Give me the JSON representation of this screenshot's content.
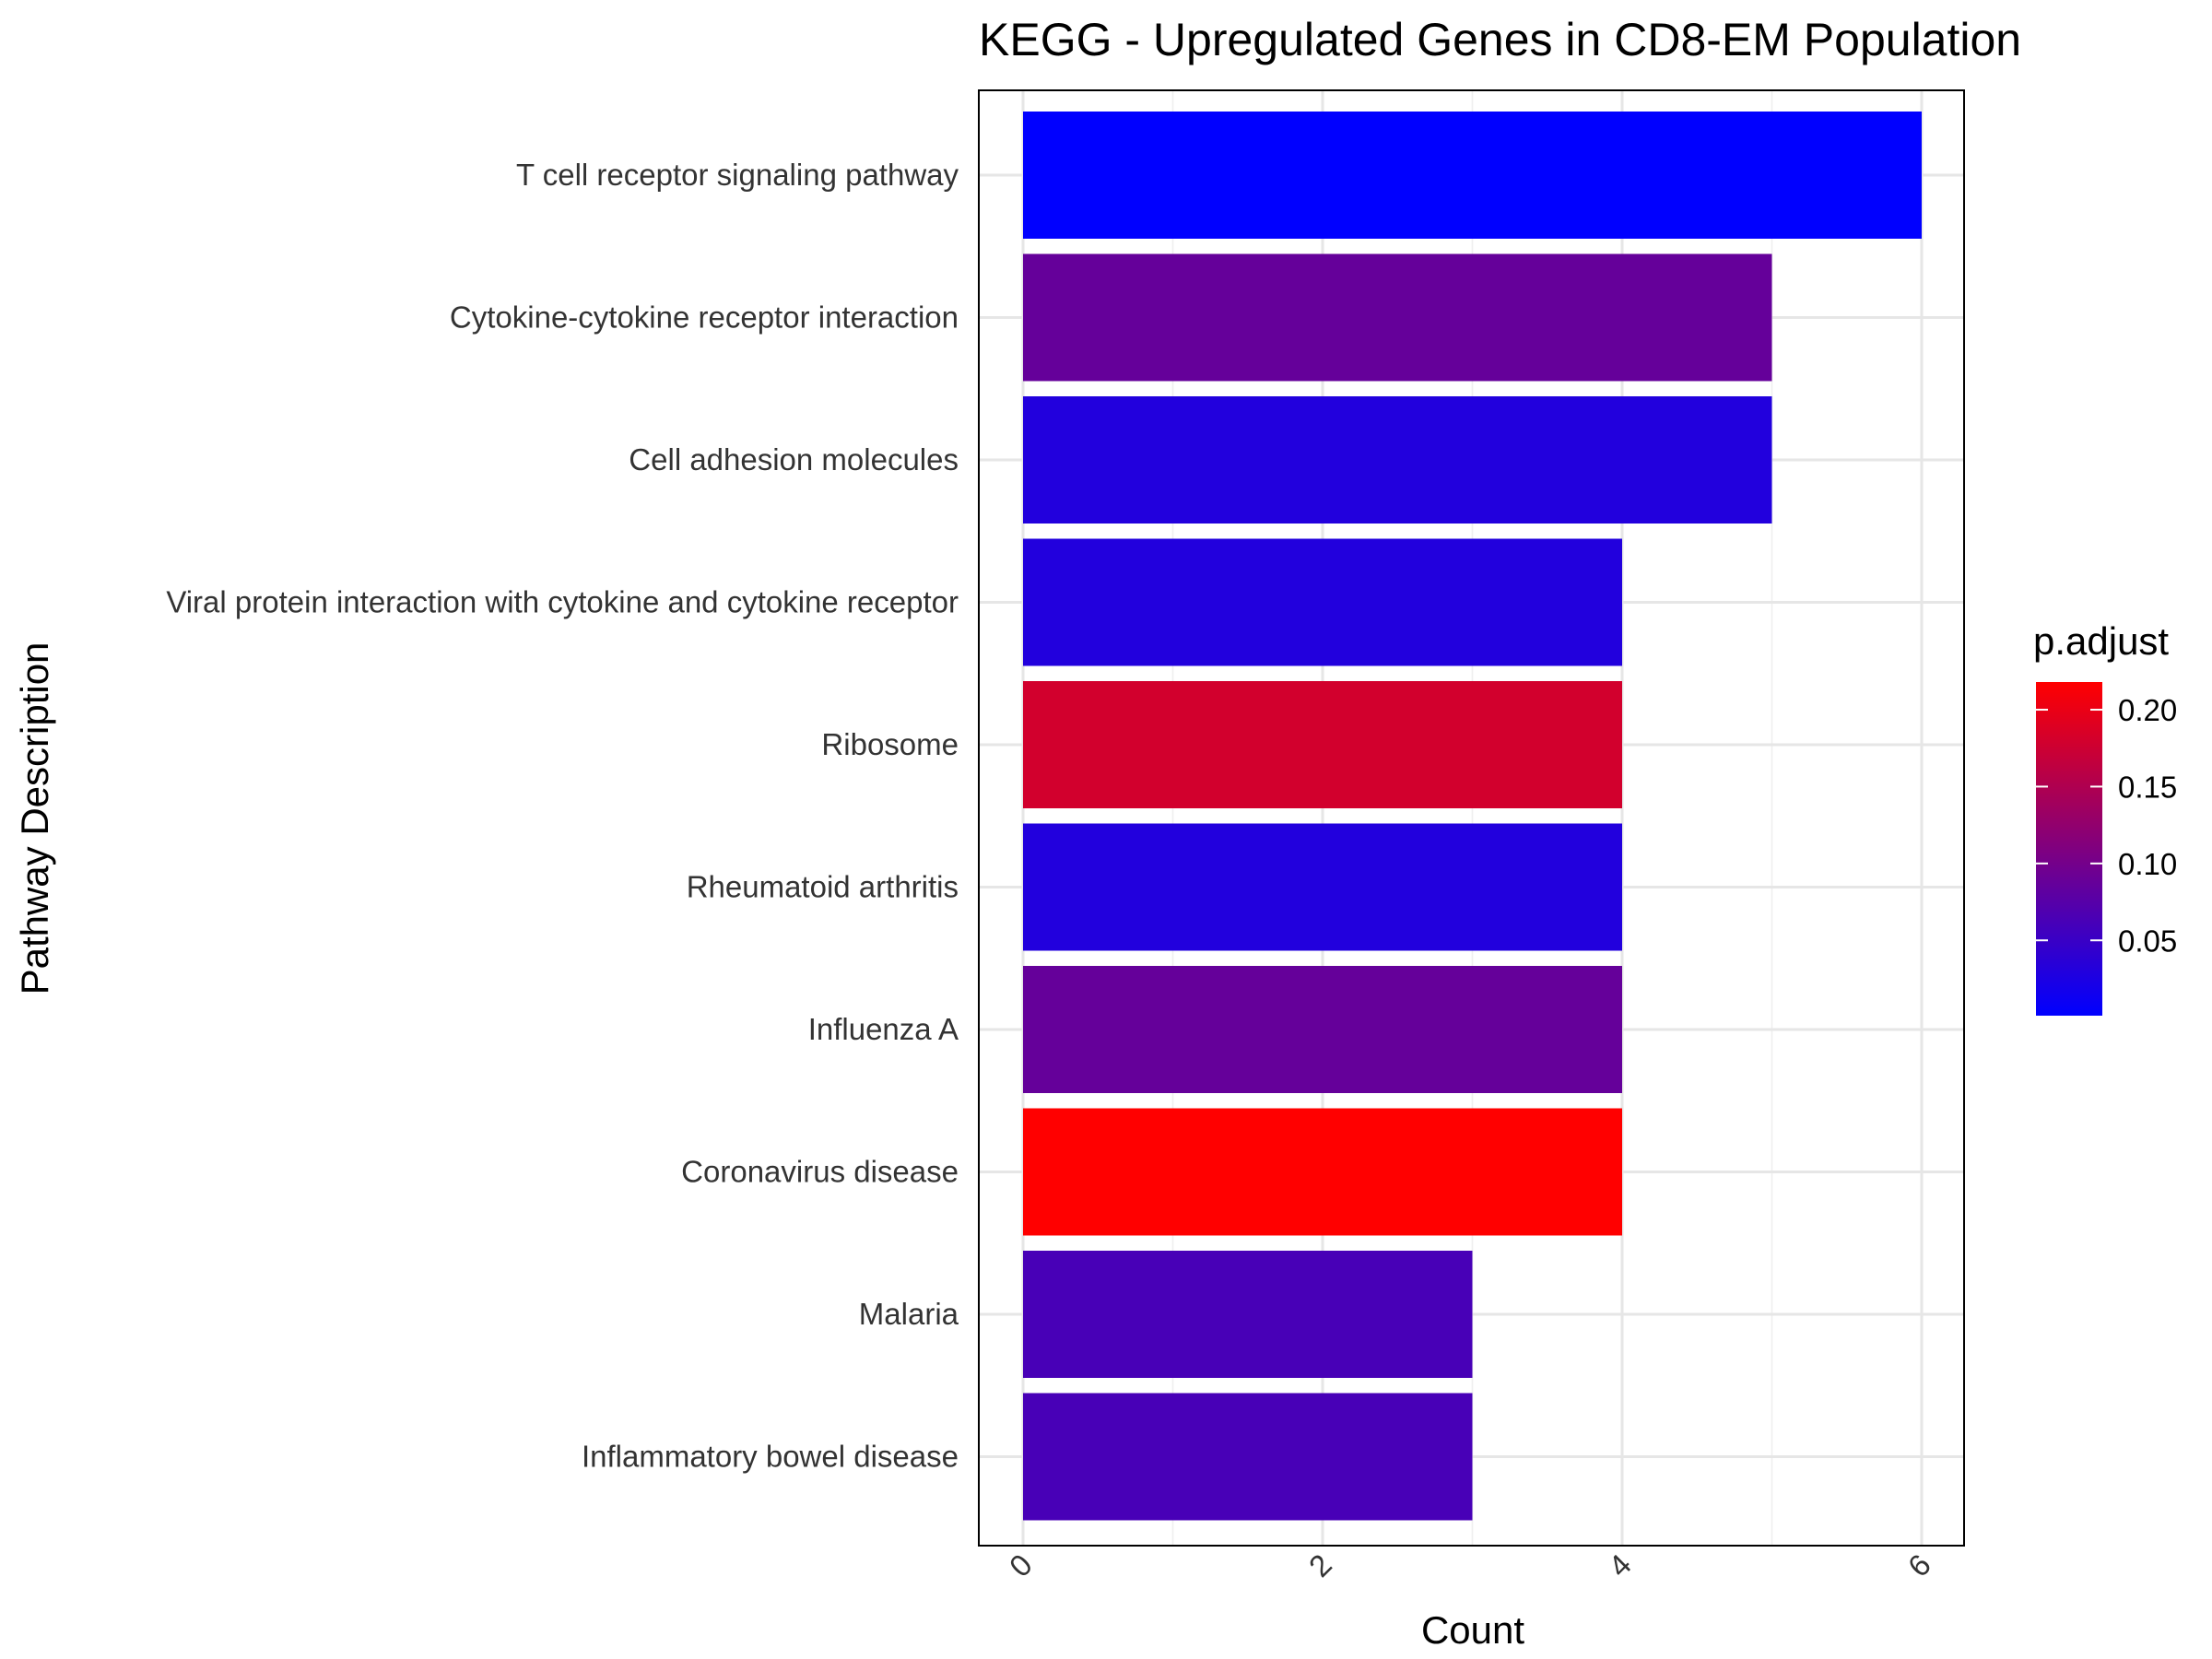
{
  "chart_data": {
    "type": "bar",
    "orientation": "horizontal",
    "title": "KEGG - Upregulated Genes in CD8-EM Population",
    "xlabel": "Count",
    "ylabel": "Pathway Description",
    "xlim": [
      0,
      6
    ],
    "xticks": [
      0,
      2,
      4,
      6
    ],
    "grid": true,
    "categories": [
      "T cell receptor signaling pathway",
      "Cytokine-cytokine receptor interaction",
      "Cell adhesion molecules",
      "Viral protein interaction with cytokine and cytokine receptor",
      "Ribosome",
      "Rheumatoid arthritis",
      "Influenza A",
      "Coronavirus disease",
      "Malaria",
      "Inflammatory bowel disease"
    ],
    "values": [
      6,
      5,
      5,
      4,
      4,
      4,
      4,
      4,
      3,
      3
    ],
    "p_adjust": [
      0.001,
      0.087,
      0.03,
      0.03,
      0.18,
      0.03,
      0.087,
      0.218,
      0.062,
      0.062
    ],
    "legend": {
      "title": "p.adjust",
      "placement": "right",
      "ticks": [
        0.05,
        0.1,
        0.15,
        0.2
      ],
      "tick_labels": [
        "0.05",
        "0.10",
        "0.15",
        "0.20"
      ],
      "range": [
        0.001,
        0.218
      ],
      "low_color": "#0000FF",
      "high_color": "#FF0000"
    }
  }
}
